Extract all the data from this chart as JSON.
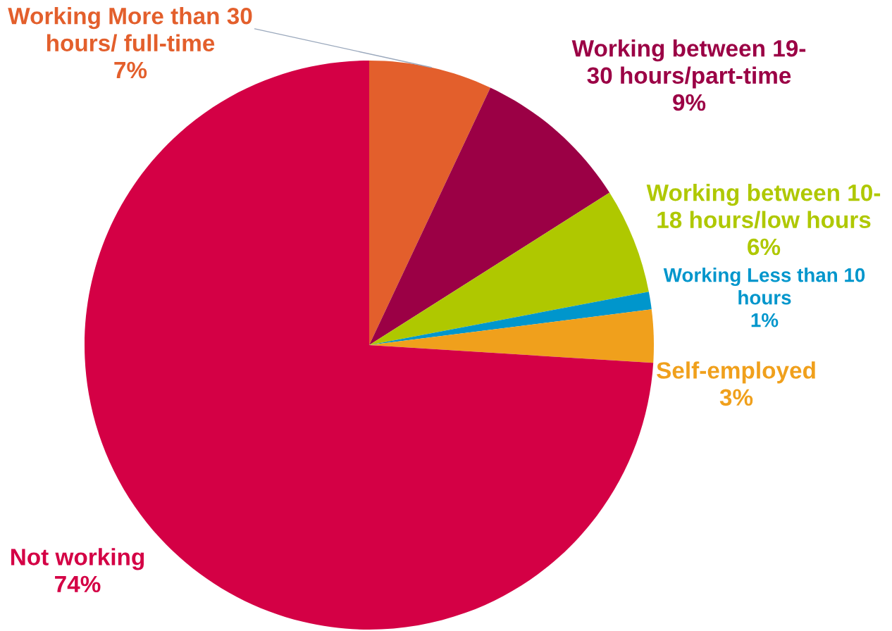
{
  "chart_data": {
    "type": "pie",
    "categories": [
      "Working More than 30\nhours/ full-time",
      "Working between 19-\n30 hours/part-time",
      "Working between 10-\n18 hours/low hours",
      "Working Less than 10\nhours",
      "Self-employed",
      "Not working"
    ],
    "values": [
      7,
      9,
      6,
      1,
      3,
      74
    ],
    "value_labels": [
      "7%",
      "9%",
      "6%",
      "1%",
      "3%",
      "74%"
    ],
    "colors": [
      "#e35f2c",
      "#9b0045",
      "#afc800",
      "#0096cc",
      "#f0a01c",
      "#d40045"
    ]
  }
}
